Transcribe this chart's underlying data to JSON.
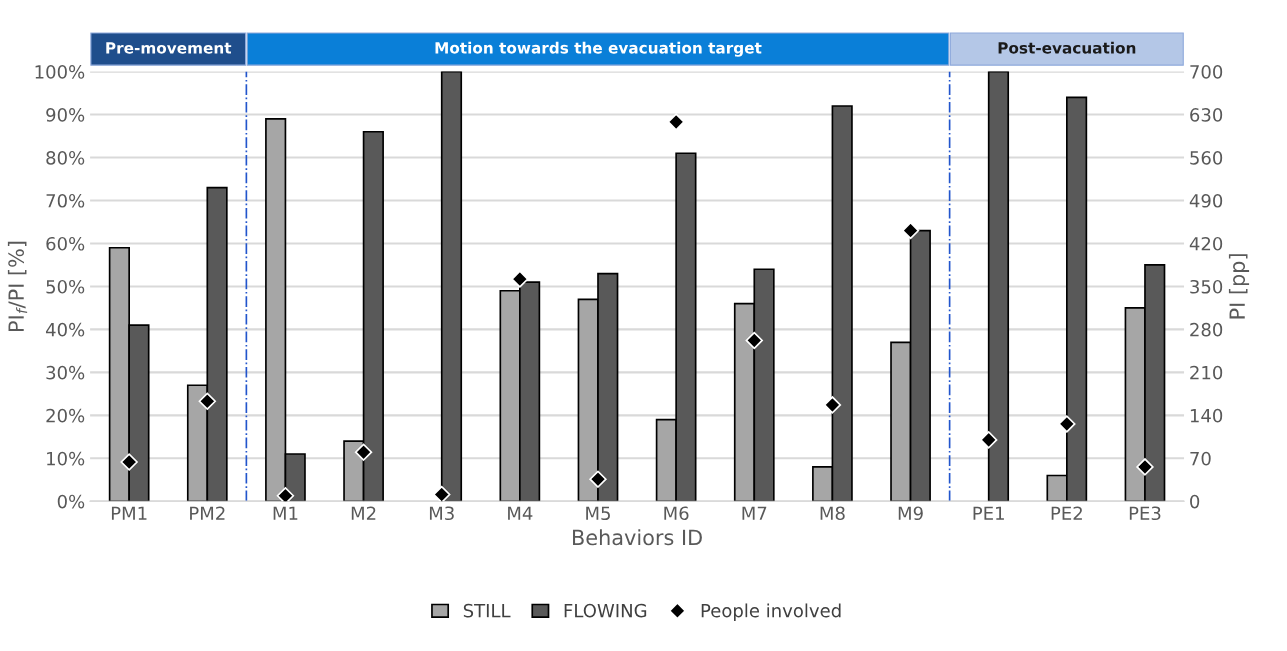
{
  "chart_data": {
    "type": "bar",
    "xlabel": "Behaviors ID",
    "ylabel": "PI$_{f}$/PI [%]",
    "y2label": "PI [pp]",
    "categories": [
      "PM1",
      "PM2",
      "M1",
      "M2",
      "M3",
      "M4",
      "M5",
      "M6",
      "M7",
      "M8",
      "M9",
      "PE1",
      "PE2",
      "PE3"
    ],
    "series": [
      {
        "name": "STILL",
        "color": "#a6a6a6",
        "values": [
          59,
          27,
          89,
          14,
          0,
          49,
          47,
          19,
          46,
          8,
          37,
          0,
          6,
          45
        ]
      },
      {
        "name": "FLOWING",
        "color": "#595959",
        "values": [
          41,
          73,
          11,
          86,
          100,
          51,
          53,
          81,
          54,
          92,
          63,
          100,
          94,
          55
        ]
      },
      {
        "name": "People involved",
        "type": "scatter",
        "axis": "y2",
        "marker": "diamond",
        "color": "#000000",
        "values": [
          64,
          163,
          9,
          80,
          11,
          362,
          36,
          618,
          262,
          157,
          441,
          100,
          126,
          56
        ]
      }
    ],
    "ylim": [
      0,
      100
    ],
    "yticks": [
      {
        "value": 0,
        "label": "0%"
      },
      {
        "value": 10,
        "label": "10%"
      },
      {
        "value": 20,
        "label": "20%"
      },
      {
        "value": 30,
        "label": "30%"
      },
      {
        "value": 40,
        "label": "40%"
      },
      {
        "value": 50,
        "label": "50%"
      },
      {
        "value": 60,
        "label": "60%"
      },
      {
        "value": 70,
        "label": "70%"
      },
      {
        "value": 80,
        "label": "80%"
      },
      {
        "value": 90,
        "label": "90%"
      },
      {
        "value": 100,
        "label": "100%"
      }
    ],
    "y2lim": [
      0,
      700
    ],
    "y2ticks": [
      0,
      70,
      140,
      210,
      280,
      350,
      420,
      490,
      560,
      630,
      700
    ],
    "annotations": [
      "Pre-movement",
      "Motion towards the evacuation target",
      "Post-evacuation"
    ],
    "grid": "y",
    "legend": "bottom"
  }
}
